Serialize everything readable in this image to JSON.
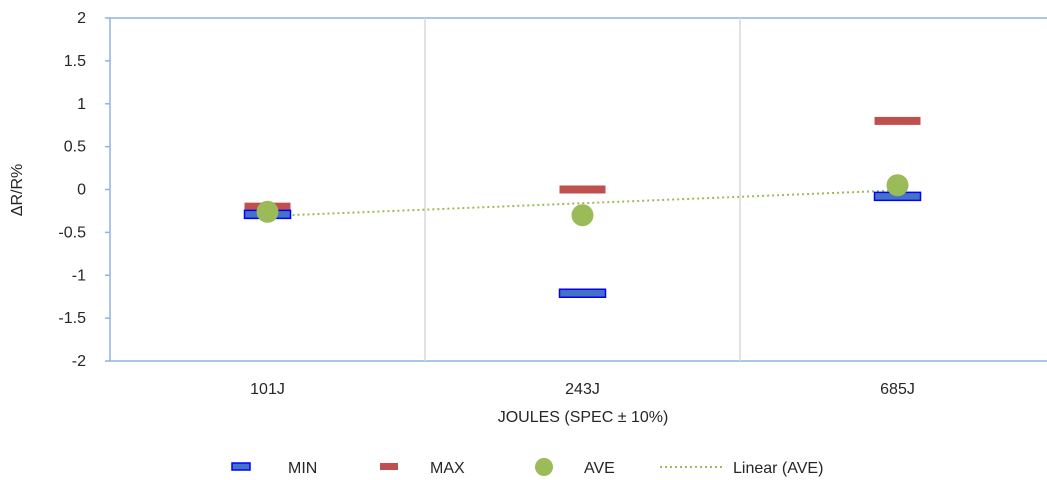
{
  "chart_data": {
    "type": "scatter",
    "title": "",
    "xlabel": "JOULES (SPEC ± 10%)",
    "ylabel": "ΔR/R%",
    "categories": [
      "101J",
      "243J",
      "685J"
    ],
    "ylim": [
      -2,
      2
    ],
    "yticks": [
      2,
      1.5,
      1,
      0.5,
      0,
      -0.5,
      -1,
      -1.5,
      -2
    ],
    "ytick_labels": [
      "2",
      "1.5",
      "1",
      "0.5",
      "0",
      "-0.5",
      "-1",
      "-1.5",
      "-2"
    ],
    "grid": "vertical",
    "legend_position": "bottom",
    "series": [
      {
        "name": "MIN",
        "marker": "dash",
        "color": "#4472c4",
        "edge": "#0000ff",
        "values": [
          -0.29,
          -1.21,
          -0.08
        ]
      },
      {
        "name": "MAX",
        "marker": "dash",
        "color": "#c0504d",
        "values": [
          -0.2,
          0.0,
          0.8
        ]
      },
      {
        "name": "AVE",
        "marker": "circle",
        "color": "#9bbb59",
        "values": [
          -0.26,
          -0.3,
          0.05
        ]
      },
      {
        "name": "Linear (AVE)",
        "marker": "dotted-line",
        "color": "#9bbb59",
        "values": [
          -0.31,
          -0.16,
          -0.01
        ]
      }
    ]
  }
}
